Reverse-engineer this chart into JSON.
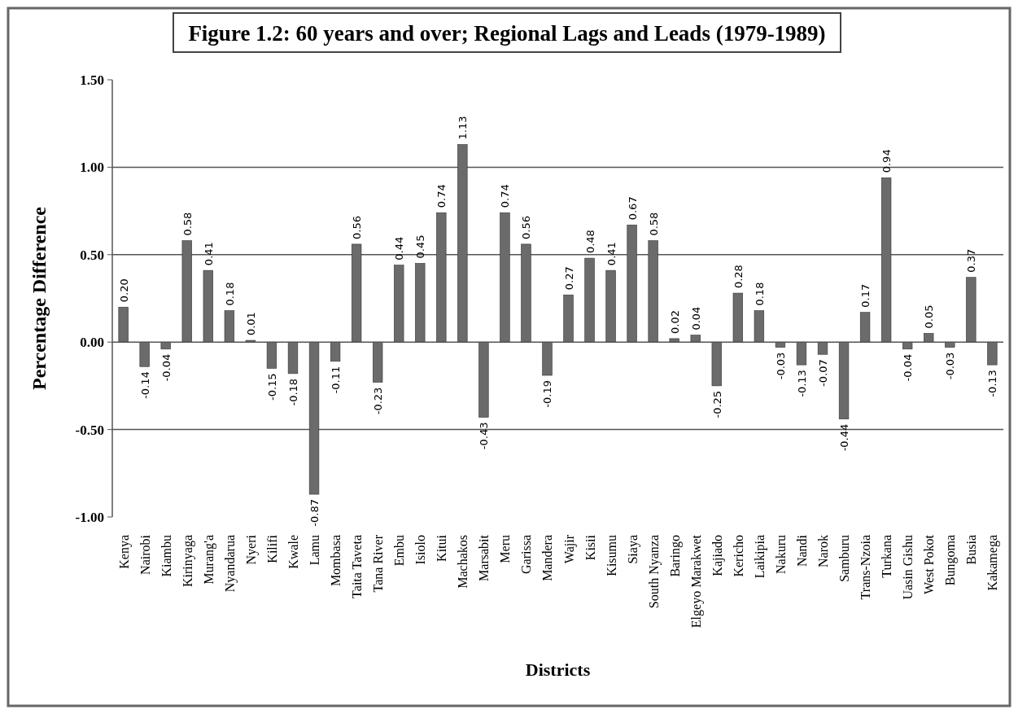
{
  "chart_data": {
    "type": "bar",
    "title": "Figure 1.2: 60 years and over; Regional Lags and Leads (1979-1989)",
    "xlabel": "Districts",
    "ylabel": "Percentage Difference",
    "categories": [
      "Kenya",
      "Nairobi",
      "Kiambu",
      "Kirinyaga",
      "Murang'a",
      "Nyandarua",
      "Nyeri",
      "Kilifi",
      "Kwale",
      "Lamu",
      "Mombasa",
      "Taita Taveta",
      "Tana River",
      "Embu",
      "Isiolo",
      "Kitui",
      "Machakos",
      "Marsabit",
      "Meru",
      "Garissa",
      "Mandera",
      "Wajir",
      "Kisii",
      "Kisumu",
      "Siaya",
      "South Nyanza",
      "Baringo",
      "Elgeyo Marakwet",
      "Kajiado",
      "Kericho",
      "Laikipia",
      "Nakuru",
      "Nandi",
      "Narok",
      "Samburu",
      "Trans-Nzoia",
      "Turkana",
      "Uasin Gishu",
      "West Pokot",
      "Bungoma",
      "Busia",
      "Kakamega"
    ],
    "values": [
      0.2,
      -0.14,
      -0.04,
      0.58,
      0.41,
      0.18,
      0.01,
      -0.15,
      -0.18,
      -0.87,
      -0.11,
      0.56,
      -0.23,
      0.44,
      0.45,
      0.74,
      1.13,
      -0.43,
      0.74,
      0.56,
      -0.19,
      0.27,
      0.48,
      0.41,
      0.67,
      0.58,
      0.02,
      0.04,
      -0.25,
      0.28,
      0.18,
      -0.03,
      -0.13,
      -0.07,
      -0.44,
      0.17,
      0.94,
      -0.04,
      0.05,
      -0.03,
      0.37,
      -0.13
    ],
    "value_labels": [
      "0.20",
      "-0.14",
      "-0.04",
      "0.58",
      "0.41",
      "0.18",
      "0.01",
      "-0.15",
      "-0.18",
      "-0.87",
      "-0.11",
      "0.56",
      "-0.23",
      "0.44",
      "0.45",
      "0.74",
      "1.13",
      "-0.43",
      "0.74",
      "0.56",
      "-0.19",
      "0.27",
      "0.48",
      "0.41",
      "0.67",
      "0.58",
      "0.02",
      "0.04",
      "-0.25",
      "0.28",
      "0.18",
      "-0.03",
      "-0.13",
      "-0.07",
      "-0.44",
      "0.17",
      "0.94",
      "-0.04",
      "0.05",
      "-0.03",
      "0.37",
      "-0.13"
    ],
    "color": "#6b6b6b",
    "ylim": [
      -1,
      1.5
    ],
    "yticks": [
      {
        "value": -1,
        "label": "-1.00"
      },
      {
        "value": -0.5,
        "label": "-0.50"
      },
      {
        "value": 0,
        "label": "0.00"
      },
      {
        "value": 0.5,
        "label": "0.50"
      },
      {
        "value": 1,
        "label": "1.00"
      },
      {
        "value": 1.5,
        "label": "1.50"
      }
    ],
    "grid": "y"
  }
}
